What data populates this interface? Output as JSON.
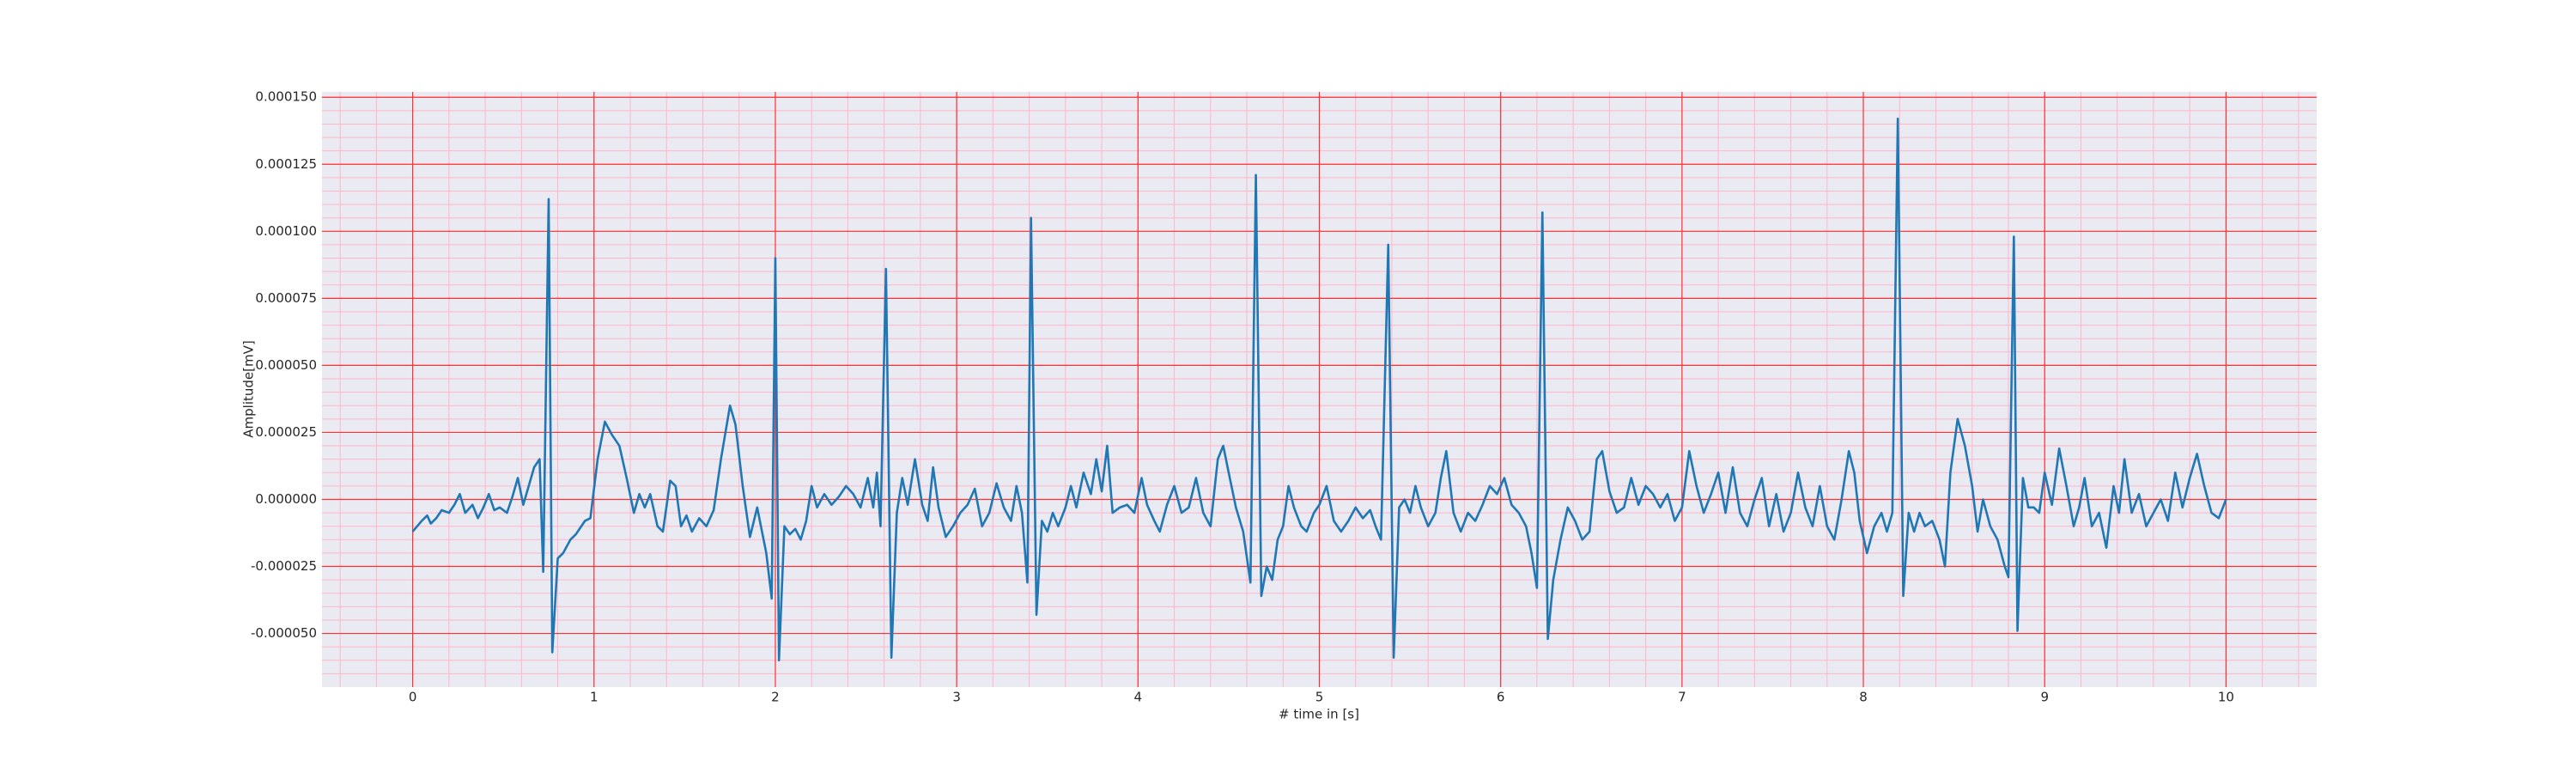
{
  "chart_data": {
    "type": "line",
    "xlabel": "# time in [s]",
    "ylabel": "Amplitude[mV]",
    "color": "#1f77b4",
    "grid": true,
    "minor_grid": true,
    "xlim": [
      -0.5,
      10.5
    ],
    "xticks": [
      0,
      1,
      2,
      3,
      4,
      5,
      6,
      7,
      8,
      9,
      10
    ],
    "ylim": [
      -7e-05,
      0.000152
    ],
    "yticks": [
      {
        "value": -5e-05,
        "label": "-0.000050"
      },
      {
        "value": -2.5e-05,
        "label": "-0.000025"
      },
      {
        "value": 0,
        "label": "0.000000"
      },
      {
        "value": 2.5e-05,
        "label": "0.000025"
      },
      {
        "value": 5e-05,
        "label": "0.000050"
      },
      {
        "value": 7.5e-05,
        "label": "0.000075"
      },
      {
        "value": 0.0001,
        "label": "0.000100"
      },
      {
        "value": 0.000125,
        "label": "0.000125"
      },
      {
        "value": 0.00015,
        "label": "0.000150"
      }
    ],
    "x": [
      0,
      0.05,
      0.08,
      0.1,
      0.13,
      0.16,
      0.2,
      0.23,
      0.26,
      0.29,
      0.33,
      0.36,
      0.39,
      0.42,
      0.45,
      0.48,
      0.52,
      0.55,
      0.58,
      0.61,
      0.64,
      0.67,
      0.7,
      0.72,
      0.75,
      0.77,
      0.8,
      0.83,
      0.87,
      0.9,
      0.95,
      0.98,
      1.02,
      1.06,
      1.1,
      1.14,
      1.18,
      1.22,
      1.25,
      1.28,
      1.31,
      1.35,
      1.38,
      1.42,
      1.45,
      1.48,
      1.51,
      1.54,
      1.58,
      1.62,
      1.66,
      1.7,
      1.75,
      1.78,
      1.82,
      1.86,
      1.9,
      1.95,
      1.98,
      2.0,
      2.02,
      2.05,
      2.08,
      2.11,
      2.14,
      2.17,
      2.2,
      2.23,
      2.27,
      2.31,
      2.35,
      2.39,
      2.43,
      2.47,
      2.51,
      2.54,
      2.56,
      2.58,
      2.61,
      2.64,
      2.67,
      2.7,
      2.73,
      2.77,
      2.81,
      2.84,
      2.87,
      2.9,
      2.94,
      2.98,
      3.02,
      3.06,
      3.1,
      3.14,
      3.18,
      3.22,
      3.26,
      3.3,
      3.33,
      3.36,
      3.39,
      3.41,
      3.44,
      3.47,
      3.5,
      3.53,
      3.56,
      3.6,
      3.63,
      3.66,
      3.7,
      3.74,
      3.77,
      3.8,
      3.83,
      3.86,
      3.9,
      3.94,
      3.98,
      4.02,
      4.05,
      4.09,
      4.12,
      4.16,
      4.2,
      4.24,
      4.28,
      4.32,
      4.36,
      4.4,
      4.44,
      4.47,
      4.5,
      4.54,
      4.58,
      4.62,
      4.65,
      4.68,
      4.71,
      4.74,
      4.77,
      4.8,
      4.83,
      4.86,
      4.9,
      4.93,
      4.97,
      5.0,
      5.04,
      5.08,
      5.12,
      5.16,
      5.2,
      5.24,
      5.28,
      5.31,
      5.34,
      5.38,
      5.41,
      5.44,
      5.47,
      5.5,
      5.53,
      5.56,
      5.6,
      5.64,
      5.67,
      5.7,
      5.74,
      5.78,
      5.82,
      5.86,
      5.9,
      5.94,
      5.98,
      6.02,
      6.06,
      6.1,
      6.14,
      6.17,
      6.2,
      6.23,
      6.26,
      6.29,
      6.33,
      6.37,
      6.41,
      6.45,
      6.49,
      6.53,
      6.56,
      6.6,
      6.64,
      6.68,
      6.72,
      6.76,
      6.8,
      6.84,
      6.88,
      6.92,
      6.96,
      7.0,
      7.04,
      7.08,
      7.12,
      7.16,
      7.2,
      7.24,
      7.28,
      7.32,
      7.36,
      7.4,
      7.44,
      7.48,
      7.52,
      7.56,
      7.6,
      7.64,
      7.68,
      7.72,
      7.76,
      7.8,
      7.84,
      7.88,
      7.92,
      7.95,
      7.98,
      8.02,
      8.06,
      8.1,
      8.13,
      8.16,
      8.19,
      8.22,
      8.25,
      8.28,
      8.31,
      8.34,
      8.38,
      8.42,
      8.45,
      8.48,
      8.52,
      8.56,
      8.6,
      8.63,
      8.66,
      8.7,
      8.74,
      8.78,
      8.8,
      8.83,
      8.85,
      8.88,
      8.91,
      8.94,
      8.97,
      9.0,
      9.04,
      9.08,
      9.12,
      9.16,
      9.19,
      9.22,
      9.26,
      9.3,
      9.34,
      9.38,
      9.41,
      9.44,
      9.48,
      9.52,
      9.56,
      9.6,
      9.64,
      9.68,
      9.72,
      9.76,
      9.8,
      9.84,
      9.88,
      9.92,
      9.96,
      10.0
    ],
    "values": [
      -1.2e-05,
      -8e-06,
      -6e-06,
      -9e-06,
      -7e-06,
      -4e-06,
      -5e-06,
      -2e-06,
      2e-06,
      -5e-06,
      -2e-06,
      -7e-06,
      -3e-06,
      2e-06,
      -4e-06,
      -3e-06,
      -5e-06,
      1e-06,
      8e-06,
      -2e-06,
      5e-06,
      1.2e-05,
      1.5e-05,
      -2.7e-05,
      0.000112,
      -5.7e-05,
      -2.2e-05,
      -2e-05,
      -1.5e-05,
      -1.3e-05,
      -8e-06,
      -7e-06,
      1.5e-05,
      2.9e-05,
      2.4e-05,
      2e-05,
      8e-06,
      -5e-06,
      2e-06,
      -3e-06,
      2e-06,
      -1e-05,
      -1.2e-05,
      7e-06,
      5e-06,
      -1e-05,
      -6e-06,
      -1.2e-05,
      -7e-06,
      -1e-05,
      -4e-06,
      1.5e-05,
      3.5e-05,
      2.8e-05,
      5e-06,
      -1.4e-05,
      -3e-06,
      -2e-05,
      -3.7e-05,
      9e-05,
      -6e-05,
      -1e-05,
      -1.3e-05,
      -1.1e-05,
      -1.5e-05,
      -8e-06,
      5e-06,
      -3e-06,
      2e-06,
      -2e-06,
      1e-06,
      5e-06,
      2e-06,
      -3e-06,
      8e-06,
      -3e-06,
      1e-05,
      -1e-05,
      8.6e-05,
      -5.9e-05,
      -5e-06,
      8e-06,
      -2e-06,
      1.5e-05,
      -2e-06,
      -8e-06,
      1.2e-05,
      -3e-06,
      -1.4e-05,
      -1e-05,
      -5e-06,
      -2e-06,
      4e-06,
      -1e-05,
      -5e-06,
      6e-06,
      -3e-06,
      -8e-06,
      5e-06,
      -5e-06,
      -3.1e-05,
      0.000105,
      -4.3e-05,
      -8e-06,
      -1.2e-05,
      -5e-06,
      -1e-05,
      -3e-06,
      5e-06,
      -3e-06,
      1e-05,
      2e-06,
      1.5e-05,
      3e-06,
      2e-05,
      -5e-06,
      -3e-06,
      -2e-06,
      -5e-06,
      8e-06,
      -2e-06,
      -8e-06,
      -1.2e-05,
      -2e-06,
      5e-06,
      -5e-06,
      -3e-06,
      8e-06,
      -5e-06,
      -1e-05,
      1.5e-05,
      2e-05,
      1e-05,
      -3e-06,
      -1.2e-05,
      -3.1e-05,
      0.000121,
      -3.6e-05,
      -2.5e-05,
      -3e-05,
      -1.5e-05,
      -1e-05,
      5e-06,
      -3e-06,
      -1e-05,
      -1.2e-05,
      -5e-06,
      -2e-06,
      5e-06,
      -8e-06,
      -1.2e-05,
      -8e-06,
      -3e-06,
      -7e-06,
      -4e-06,
      -1e-05,
      -1.5e-05,
      9.5e-05,
      -5.9e-05,
      -3e-06,
      0,
      -5e-06,
      5e-06,
      -3e-06,
      -1e-05,
      -5e-06,
      8e-06,
      1.8e-05,
      -5e-06,
      -1.2e-05,
      -5e-06,
      -8e-06,
      -2e-06,
      5e-06,
      2e-06,
      8e-06,
      -2e-06,
      -5e-06,
      -1e-05,
      -2e-05,
      -3.3e-05,
      0.000107,
      -5.2e-05,
      -3e-05,
      -1.5e-05,
      -3e-06,
      -8e-06,
      -1.5e-05,
      -1.2e-05,
      1.5e-05,
      1.8e-05,
      3e-06,
      -5e-06,
      -3e-06,
      8e-06,
      -2e-06,
      5e-06,
      2e-06,
      -3e-06,
      2e-06,
      -8e-06,
      -3e-06,
      1.8e-05,
      5e-06,
      -5e-06,
      2e-06,
      1e-05,
      -5e-06,
      1.2e-05,
      -5e-06,
      -1e-05,
      0,
      8e-06,
      -1e-05,
      2e-06,
      -1.2e-05,
      -5e-06,
      1e-05,
      -3e-06,
      -1e-05,
      5e-06,
      -1e-05,
      -1.5e-05,
      0,
      1.8e-05,
      1e-05,
      -8e-06,
      -2e-05,
      -1e-05,
      -5e-06,
      -1.2e-05,
      -5e-06,
      0.000142,
      -3.6e-05,
      -5e-06,
      -1.2e-05,
      -5e-06,
      -1e-05,
      -8e-06,
      -1.5e-05,
      -2.5e-05,
      1e-05,
      3e-05,
      2e-05,
      5e-06,
      -1.2e-05,
      0,
      -1e-05,
      -1.5e-05,
      -2.5e-05,
      -2.9e-05,
      9.8e-05,
      -4.9e-05,
      8e-06,
      -3e-06,
      -3e-06,
      -5e-06,
      1e-05,
      -2e-06,
      1.9e-05,
      5e-06,
      -1e-05,
      -3e-06,
      8e-06,
      -1e-05,
      -5e-06,
      -1.8e-05,
      5e-06,
      -5e-06,
      1.5e-05,
      -5e-06,
      2e-06,
      -1e-05,
      -5e-06,
      0,
      -8e-06,
      1e-05,
      -3e-06,
      8e-06,
      1.7e-05,
      5e-06,
      -5e-06,
      -7e-06,
      0
    ]
  }
}
